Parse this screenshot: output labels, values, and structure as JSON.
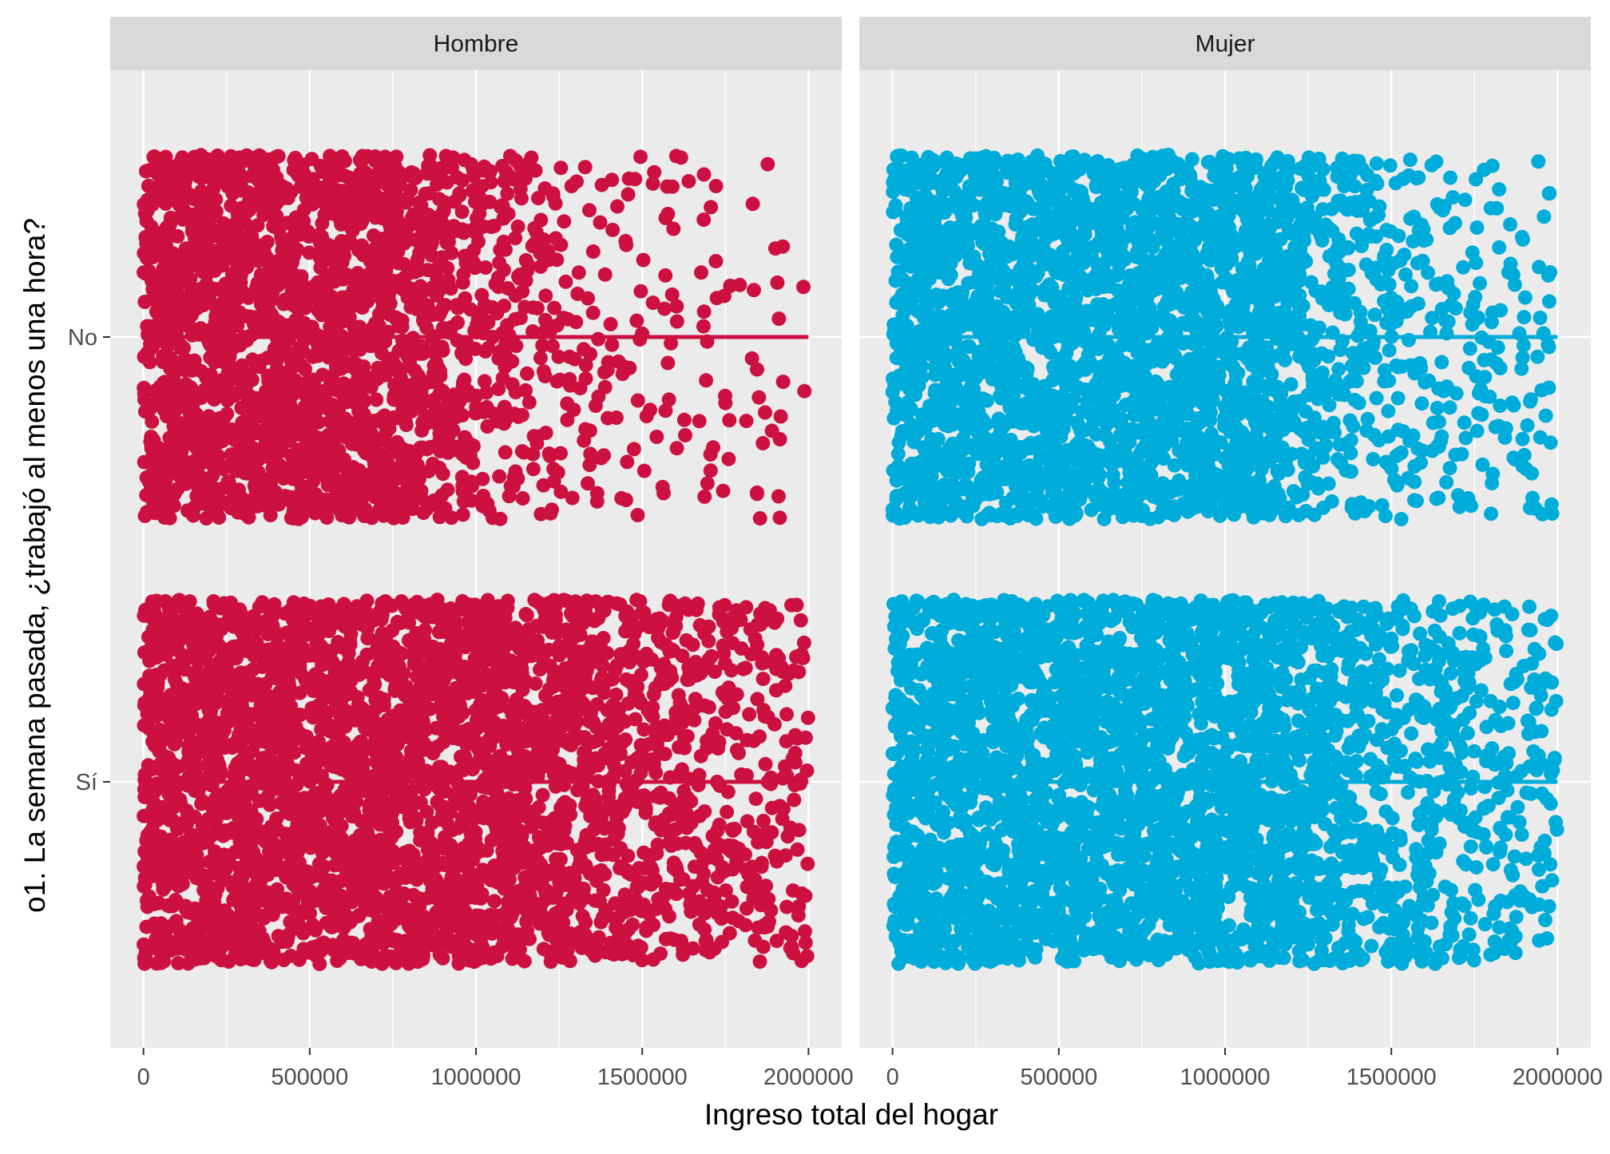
{
  "chart_data": {
    "type": "scatter",
    "jitter": true,
    "facets": [
      {
        "label": "Hombre",
        "color": "#CC1140"
      },
      {
        "label": "Mujer",
        "color": "#00ACD9"
      }
    ],
    "xlabel": "Ingreso total del hogar",
    "ylabel": "o1. La semana pasada, ¿trabajó al menos una hora?",
    "xlim": [
      -100000,
      2100000
    ],
    "x_ticks": [
      0,
      500000,
      1000000,
      1500000,
      2000000
    ],
    "x_tick_labels": [
      "0",
      "500000",
      "1000000",
      "1500000",
      "2000000"
    ],
    "y_categories": [
      "No",
      "Sí"
    ],
    "grid": true,
    "panel_background": "#EBEBEB",
    "strip_background": "#D9D9D9",
    "series": [
      {
        "name": "Hombre",
        "category": "No",
        "x_min": 0,
        "x_max": 2000000,
        "density_profile": [
          1,
          1,
          1,
          1,
          1,
          1,
          1,
          0.95,
          0.75,
          0.55,
          0.4,
          0.3,
          0.22,
          0.16,
          0.12,
          0.1,
          0.08,
          0.07,
          0.06,
          0.05
        ]
      },
      {
        "name": "Hombre",
        "category": "Sí",
        "x_min": 0,
        "x_max": 2000000,
        "density_profile": [
          1,
          1,
          1,
          1,
          1,
          1,
          1,
          1,
          1,
          1,
          1,
          0.95,
          0.85,
          0.7,
          0.6,
          0.5,
          0.45,
          0.38,
          0.32,
          0.3
        ]
      },
      {
        "name": "Mujer",
        "category": "No",
        "x_min": 0,
        "x_max": 2000000,
        "density_profile": [
          1,
          1,
          1,
          1,
          1,
          1,
          1,
          1,
          1,
          1,
          1,
          0.85,
          0.6,
          0.45,
          0.35,
          0.28,
          0.22,
          0.18,
          0.16,
          0.14
        ]
      },
      {
        "name": "Mujer",
        "category": "Sí",
        "x_min": 0,
        "x_max": 2000000,
        "density_profile": [
          1,
          1,
          1,
          1,
          1,
          1,
          1,
          1,
          1,
          1,
          1,
          1,
          0.92,
          0.7,
          0.55,
          0.45,
          0.4,
          0.35,
          0.3,
          0.28
        ]
      }
    ]
  }
}
